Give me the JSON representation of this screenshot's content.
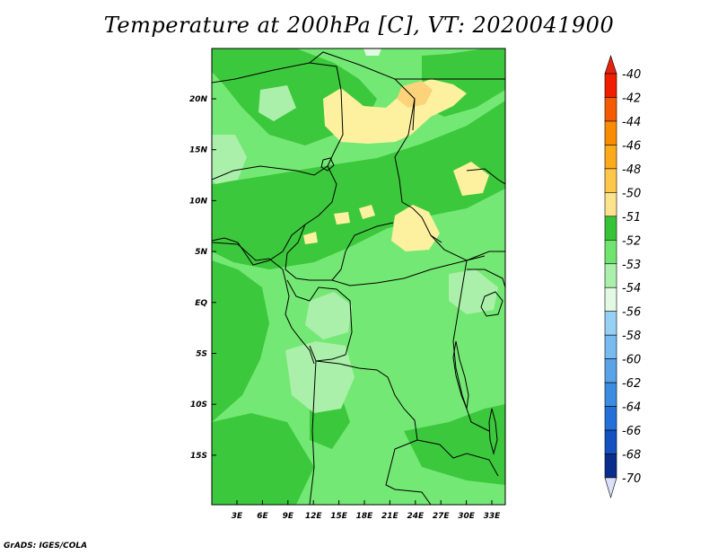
{
  "title": "Temperature at 200hPa [C], VT: 2020041900",
  "credit": "GrADS: IGES/COLA",
  "map": {
    "lat_labels": [
      "20N",
      "15N",
      "10N",
      "5N",
      "EQ",
      "5S",
      "10S",
      "15S"
    ],
    "lon_labels": [
      "3E",
      "6E",
      "9E",
      "12E",
      "15E",
      "18E",
      "21E",
      "24E",
      "27E",
      "30E",
      "33E"
    ]
  },
  "colorbar": {
    "labels": [
      "-40",
      "-42",
      "-44",
      "-46",
      "-48",
      "-50",
      "-51",
      "-52",
      "-53",
      "-54",
      "-56",
      "-58",
      "-60",
      "-62",
      "-64",
      "-66",
      "-68",
      "-70"
    ],
    "colors": [
      "#f01e00",
      "#f55a00",
      "#f98c00",
      "#fbaa1a",
      "#fcc74a",
      "#fde38d",
      "#fffbb5",
      "#37c337",
      "#6fe56f",
      "#aaf0aa",
      "#e3f9e3",
      "#c8e8fa",
      "#96d0f5",
      "#78bbee",
      "#5aa3e6",
      "#3c8de0",
      "#2470d8",
      "#1450c0",
      "#0a2c8c",
      "#000c4a"
    ],
    "palette_order_note": "",
    "top_triangle": "#e4230d",
    "bottom_triangle": "#dce0f8"
  }
}
